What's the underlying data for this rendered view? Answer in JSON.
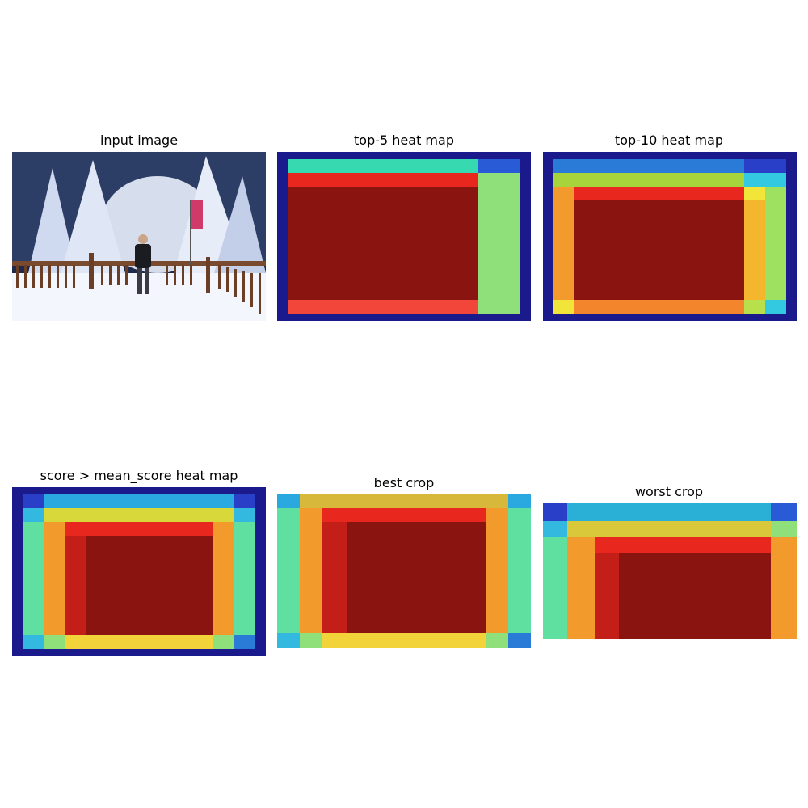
{
  "panels": [
    {
      "title": "input image"
    },
    {
      "title": "top-5 heat map"
    },
    {
      "title": "top-10 heat map"
    },
    {
      "title": "score > mean_score heat map"
    },
    {
      "title": "best crop"
    },
    {
      "title": "worst crop"
    }
  ],
  "colors": {
    "deep_blue": "#1a1a8c",
    "blue": "#2a5bd7",
    "cyan": "#33c9e0",
    "green": "#7fe07a",
    "yellow": "#f2e53a",
    "orange": "#f39a2c",
    "red": "#e8281e",
    "dark_red": "#8a1510"
  }
}
